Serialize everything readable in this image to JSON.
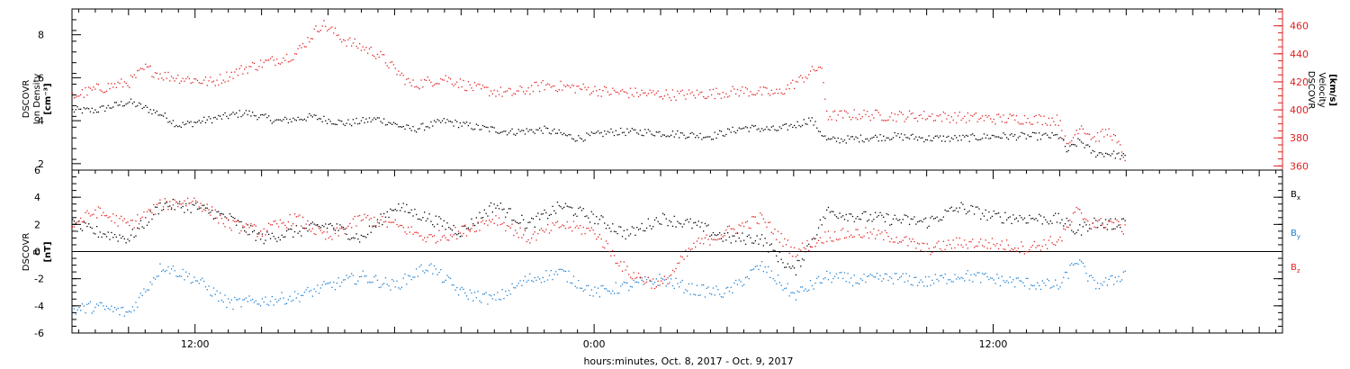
{
  "colors": {
    "black": "#000000",
    "red": "#e02020",
    "blue": "#1e7fd0",
    "axis_red": "#e02020"
  },
  "xaxis": {
    "title": "hours:minutes, Oct.  8, 2017 - Oct.  9, 2017",
    "tick_labels": [
      "12:00",
      "0:00",
      "12:00"
    ]
  },
  "chart_data": [
    {
      "type": "scatter",
      "panel": "top",
      "ylabel_left": [
        "DSCOVR",
        "Ion Density",
        "[cm⁻³]"
      ],
      "ylabel_right": [
        "DSCOVR",
        "Velocity",
        "[km/s]"
      ],
      "x_range_hours": [
        8.3,
        44.7
      ],
      "ylim_left": [
        1.7,
        9.2
      ],
      "ylim_right": [
        357,
        472
      ],
      "yticks_left": [
        "2",
        "4",
        "6",
        "8"
      ],
      "yticks_right": [
        "360",
        "380",
        "400",
        "420",
        "440",
        "460"
      ],
      "series": [
        {
          "axis": "left",
          "color": "black",
          "x": [
            8.3,
            9.0,
            10.0,
            11.0,
            11.5,
            12.5,
            13.5,
            14.5,
            15.5,
            16.5,
            17.5,
            18.5,
            19.5,
            20.5,
            21.5,
            22.5,
            23.5,
            24.5,
            25.5,
            26.5,
            27.5,
            28.5,
            29.5,
            30.2,
            30.5,
            31.0,
            32.0,
            33.0,
            34.0,
            35.0,
            36.0,
            37.0,
            38.0,
            38.2,
            38.6,
            39.0,
            39.5,
            40.0
          ],
          "y": [
            4.5,
            4.5,
            4.9,
            4.3,
            3.8,
            4.1,
            4.4,
            4.0,
            4.2,
            3.9,
            4.1,
            3.6,
            4.0,
            3.7,
            3.5,
            3.6,
            3.2,
            3.5,
            3.5,
            3.4,
            3.3,
            3.7,
            3.6,
            3.9,
            4.1,
            3.1,
            3.2,
            3.3,
            3.2,
            3.2,
            3.3,
            3.3,
            3.3,
            2.6,
            3.1,
            2.5,
            2.5,
            2.3
          ]
        },
        {
          "axis": "right",
          "color": "red",
          "x": [
            8.3,
            9.0,
            10.0,
            10.5,
            11.0,
            12.5,
            13.5,
            15.0,
            15.8,
            16.5,
            17.5,
            18.5,
            19.5,
            20.5,
            21.5,
            22.5,
            23.5,
            24.5,
            25.5,
            26.5,
            27.5,
            28.5,
            29.5,
            30.2,
            30.8,
            31.0,
            32.0,
            33.0,
            34.0,
            35.0,
            36.0,
            37.0,
            38.0,
            38.2,
            38.6,
            39.0,
            39.5,
            40.0
          ],
          "y": [
            410,
            415,
            420,
            430,
            425,
            420,
            430,
            440,
            462,
            450,
            440,
            418,
            423,
            415,
            412,
            418,
            416,
            413,
            412,
            411,
            412,
            414,
            412,
            422,
            432,
            396,
            397,
            396,
            396,
            395,
            394,
            394,
            393,
            373,
            390,
            380,
            385,
            365
          ]
        }
      ]
    },
    {
      "type": "scatter",
      "panel": "bottom",
      "ylabel_left": [
        "DSCOVR",
        "B",
        "[nT]"
      ],
      "ylim": [
        -6,
        6
      ],
      "yticks": [
        "-6",
        "-4",
        "-2",
        "0",
        "2",
        "4",
        "6"
      ],
      "zero_line": true,
      "legend": [
        {
          "label": "B",
          "sub": "x",
          "color": "black"
        },
        {
          "label": "B",
          "sub": "y",
          "color": "blue"
        },
        {
          "label": "B",
          "sub": "z",
          "color": "red"
        }
      ],
      "series": [
        {
          "name": "Bx",
          "color": "black",
          "x": [
            8.3,
            9.0,
            10.0,
            11.0,
            12.0,
            13.0,
            14.0,
            15.0,
            16.0,
            17.0,
            18.0,
            19.0,
            20.0,
            21.0,
            22.0,
            23.0,
            24.0,
            25.0,
            26.0,
            27.0,
            28.0,
            29.0,
            30.0,
            31.0,
            32.0,
            33.0,
            34.0,
            35.0,
            36.0,
            37.0,
            38.0,
            38.5,
            39.0,
            39.5,
            40.0
          ],
          "y": [
            2.0,
            1.5,
            1.0,
            3.5,
            3.3,
            2.5,
            1.0,
            1.5,
            2.0,
            1.0,
            3.4,
            2.5,
            1.5,
            3.5,
            2.0,
            3.4,
            2.5,
            1.3,
            2.5,
            2.0,
            1.0,
            1.0,
            -1.5,
            3.0,
            2.6,
            2.4,
            2.2,
            3.3,
            2.6,
            2.5,
            2.4,
            1.5,
            2.2,
            2.0,
            2.4
          ]
        },
        {
          "name": "By",
          "color": "blue",
          "x": [
            8.3,
            9.0,
            10.0,
            11.0,
            12.0,
            13.0,
            14.0,
            15.0,
            16.0,
            17.0,
            18.0,
            19.0,
            20.0,
            21.0,
            22.0,
            23.0,
            24.0,
            25.0,
            26.0,
            27.0,
            28.0,
            29.0,
            30.0,
            31.0,
            32.0,
            33.0,
            34.0,
            35.0,
            36.0,
            37.0,
            38.0,
            38.5,
            39.0,
            39.5,
            40.0
          ],
          "y": [
            -4.3,
            -4.0,
            -4.5,
            -1.0,
            -2.0,
            -3.8,
            -3.6,
            -3.3,
            -2.5,
            -1.8,
            -2.5,
            -1.0,
            -3.0,
            -3.5,
            -2.0,
            -1.5,
            -3.0,
            -2.5,
            -2.0,
            -2.8,
            -3.0,
            -1.0,
            -3.2,
            -1.8,
            -2.1,
            -1.9,
            -2.2,
            -1.7,
            -2.0,
            -2.3,
            -2.5,
            -0.5,
            -2.4,
            -2.2,
            -1.5
          ]
        },
        {
          "name": "Bz",
          "color": "red",
          "x": [
            8.3,
            9.0,
            10.0,
            11.0,
            12.0,
            13.0,
            14.0,
            15.0,
            16.0,
            17.0,
            18.0,
            19.0,
            20.0,
            21.0,
            22.0,
            23.0,
            24.0,
            25.0,
            26.0,
            27.0,
            28.0,
            29.0,
            30.0,
            31.0,
            32.0,
            33.0,
            34.0,
            35.0,
            36.0,
            37.0,
            38.0,
            38.5,
            39.0,
            39.5,
            40.0
          ],
          "y": [
            2.0,
            3.0,
            2.0,
            3.5,
            3.8,
            2.0,
            1.5,
            2.5,
            1.0,
            2.5,
            2.0,
            1.0,
            1.5,
            2.5,
            1.0,
            2.0,
            1.5,
            -1.5,
            -2.5,
            0.5,
            1.5,
            2.5,
            0.0,
            1.2,
            1.4,
            1.1,
            0.2,
            0.7,
            0.6,
            0.3,
            0.9,
            3.0,
            2.0,
            2.2,
            1.6
          ]
        }
      ]
    }
  ]
}
